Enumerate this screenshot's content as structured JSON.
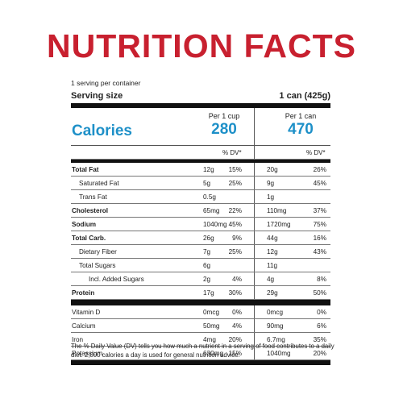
{
  "title": "NUTRITION FACTS",
  "servings_per_container": "1 serving per container",
  "serving_size_label": "Serving size",
  "serving_size_value": "1 can (425g)",
  "col1_header": "Per 1 cup",
  "col2_header": "Per 1 can",
  "calories_label": "Calories",
  "calories_cup": "280",
  "calories_can": "470",
  "dv_header": "% DV*",
  "colors": {
    "title": "#c8202f",
    "calories": "#1e90c8"
  },
  "nutrients": [
    {
      "name": "Total Fat",
      "cup": "12g",
      "cup_dv": "15%",
      "can": "20g",
      "can_dv": "26%"
    },
    {
      "name": "Saturated Fat",
      "cup": "5g",
      "cup_dv": "25%",
      "can": "9g",
      "can_dv": "45%"
    },
    {
      "name": "Trans Fat",
      "cup": "0.5g",
      "cup_dv": "",
      "can": "1g",
      "can_dv": ""
    },
    {
      "name": "Cholesterol",
      "cup": "65mg",
      "cup_dv": "22%",
      "can": "110mg",
      "can_dv": "37%"
    },
    {
      "name": "Sodium",
      "cup": "1040mg",
      "cup_dv": "45%",
      "can": "1720mg",
      "can_dv": "75%"
    },
    {
      "name": "Total Carb.",
      "cup": "26g",
      "cup_dv": "9%",
      "can": "44g",
      "can_dv": "16%"
    },
    {
      "name": "Dietary Fiber",
      "cup": "7g",
      "cup_dv": "25%",
      "can": "12g",
      "can_dv": "43%"
    },
    {
      "name": "Total Sugars",
      "cup": "6g",
      "cup_dv": "",
      "can": "11g",
      "can_dv": ""
    },
    {
      "name": "Incl. Added Sugars",
      "cup": "2g",
      "cup_dv": "4%",
      "can": "4g",
      "can_dv": "8%"
    },
    {
      "name": "Protein",
      "cup": "17g",
      "cup_dv": "30%",
      "can": "29g",
      "can_dv": "50%"
    }
  ],
  "vitamins": [
    {
      "name": "Vitamin D",
      "cup": "0mcg",
      "cup_dv": "0%",
      "can": "0mcg",
      "can_dv": "0%"
    },
    {
      "name": "Calcium",
      "cup": "50mg",
      "cup_dv": "4%",
      "can": "90mg",
      "can_dv": "6%"
    },
    {
      "name": "Iron",
      "cup": "4mg",
      "cup_dv": "20%",
      "can": "6.7mg",
      "can_dv": "35%"
    },
    {
      "name": "Potassium",
      "cup": "630mg",
      "cup_dv": "15%",
      "can": "1040mg",
      "can_dv": "20%"
    }
  ],
  "footnote": "The % Daily Value (DV) tells you how much a nutrient in a serving of food contributes to a daily diet. 2,000 calories a day is used for general nutrition advice."
}
